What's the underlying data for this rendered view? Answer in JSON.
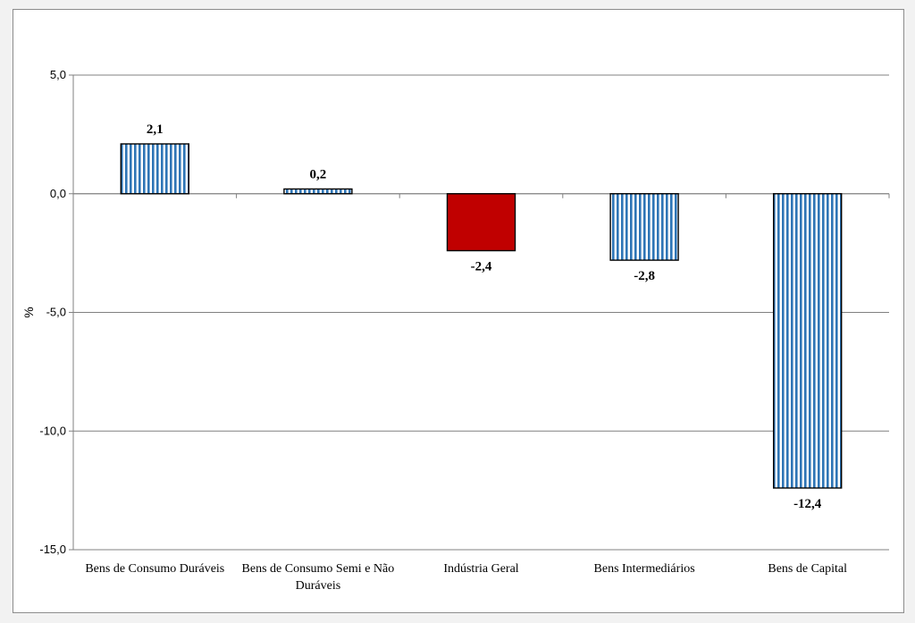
{
  "chart_data": {
    "type": "bar",
    "title": "",
    "xlabel": "",
    "ylabel": "%",
    "ylim": [
      -15,
      5
    ],
    "yticks": [
      5,
      0,
      -5,
      -10,
      -15
    ],
    "ytick_labels": [
      "5,0",
      "0,0",
      "-5,0",
      "-10,0",
      "-15,0"
    ],
    "categories": [
      [
        "Bens de Consumo Duráveis"
      ],
      [
        "Bens de Consumo Semi e Não",
        "Duráveis"
      ],
      [
        "Indústria Geral"
      ],
      [
        "Bens Intermediários"
      ],
      [
        "Bens de Capital"
      ]
    ],
    "values": [
      2.1,
      0.2,
      -2.4,
      -2.8,
      -12.4
    ],
    "value_labels": [
      "2,1",
      "0,2",
      "-2,4",
      "-2,8",
      "-12,4"
    ],
    "styles": [
      "striped",
      "striped",
      "solid",
      "striped",
      "striped"
    ],
    "grid": true
  },
  "colors": {
    "stripe_blue": "#2e75b6",
    "stripe_white": "#ffffff",
    "solid_red": "#c00000",
    "grid": "#808080",
    "bar_border": "#000000"
  }
}
